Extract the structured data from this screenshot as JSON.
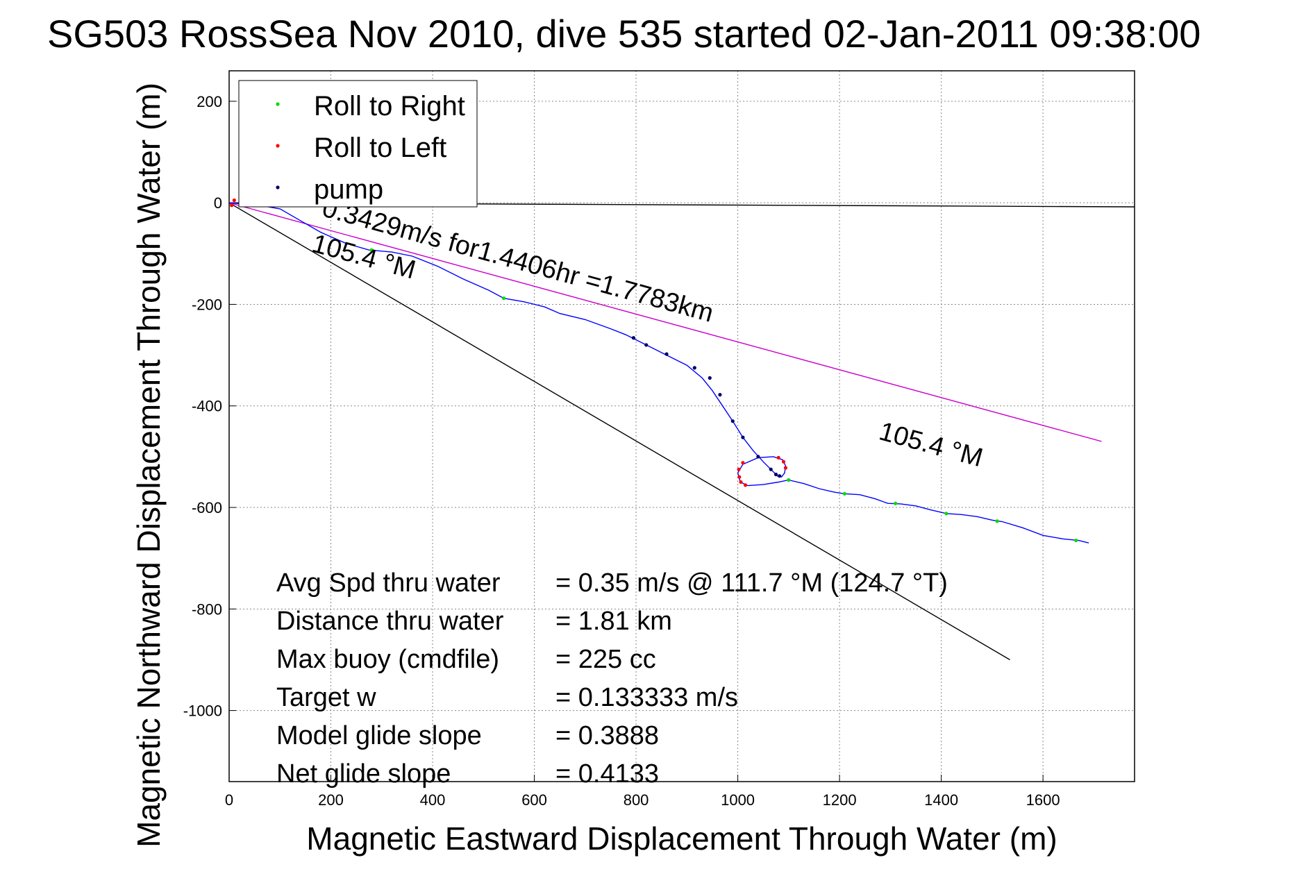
{
  "chart_data": {
    "type": "line",
    "title": "SG503 RossSea Nov 2010, dive 535 started 02-Jan-2011 09:38:00",
    "xlabel": "Magnetic Eastward Displacement Through Water (m)",
    "ylabel": "Magnetic Northward Displacement Through Water (m)",
    "xlim": [
      0,
      1780
    ],
    "ylim": [
      -1140,
      260
    ],
    "x_ticks": [
      0,
      200,
      400,
      600,
      800,
      1000,
      1200,
      1400,
      1600
    ],
    "y_ticks": [
      200,
      0,
      -200,
      -400,
      -600,
      -800,
      -1000
    ],
    "grid": true,
    "legend_position": "top-left",
    "legend": [
      {
        "label": "Roll to Right",
        "color": "#00dd00"
      },
      {
        "label": "Roll to Left",
        "color": "#ff0000"
      },
      {
        "label": "pump",
        "color": "#000066"
      }
    ],
    "lines": {
      "track": {
        "color": "#0000ff",
        "points": [
          [
            0,
            0
          ],
          [
            60,
            -5
          ],
          [
            100,
            -12
          ],
          [
            140,
            -35
          ],
          [
            180,
            -58
          ],
          [
            230,
            -80
          ],
          [
            275,
            -93
          ],
          [
            320,
            -97
          ],
          [
            360,
            -105
          ],
          [
            410,
            -125
          ],
          [
            460,
            -150
          ],
          [
            510,
            -172
          ],
          [
            540,
            -188
          ],
          [
            580,
            -195
          ],
          [
            620,
            -205
          ],
          [
            650,
            -218
          ],
          [
            700,
            -230
          ],
          [
            750,
            -248
          ],
          [
            780,
            -260
          ],
          [
            810,
            -275
          ],
          [
            840,
            -290
          ],
          [
            870,
            -305
          ],
          [
            900,
            -320
          ],
          [
            930,
            -345
          ],
          [
            950,
            -370
          ],
          [
            970,
            -400
          ],
          [
            990,
            -430
          ],
          [
            1010,
            -462
          ],
          [
            1030,
            -488
          ],
          [
            1050,
            -510
          ],
          [
            1068,
            -528
          ],
          [
            1078,
            -538
          ],
          [
            1086,
            -540
          ],
          [
            1092,
            -532
          ],
          [
            1094,
            -518
          ],
          [
            1088,
            -506
          ],
          [
            1070,
            -500
          ],
          [
            1040,
            -502
          ],
          [
            1010,
            -515
          ],
          [
            1000,
            -532
          ],
          [
            1005,
            -550
          ],
          [
            1020,
            -557
          ],
          [
            1050,
            -555
          ],
          [
            1080,
            -550
          ],
          [
            1100,
            -546
          ],
          [
            1130,
            -553
          ],
          [
            1160,
            -563
          ],
          [
            1190,
            -570
          ],
          [
            1210,
            -573
          ],
          [
            1240,
            -575
          ],
          [
            1270,
            -583
          ],
          [
            1295,
            -592
          ],
          [
            1320,
            -593
          ],
          [
            1350,
            -597
          ],
          [
            1380,
            -605
          ],
          [
            1410,
            -612
          ],
          [
            1440,
            -614
          ],
          [
            1470,
            -618
          ],
          [
            1500,
            -625
          ],
          [
            1520,
            -628
          ],
          [
            1560,
            -640
          ],
          [
            1600,
            -655
          ],
          [
            1640,
            -662
          ],
          [
            1670,
            -665
          ],
          [
            1690,
            -670
          ]
        ]
      },
      "magenta_line": {
        "color": "#cc00cc",
        "points": [
          [
            0,
            0
          ],
          [
            1715,
            -470
          ]
        ]
      },
      "black_heading_line": {
        "color": "#000000",
        "points": [
          [
            0,
            0
          ],
          [
            1535,
            -900
          ]
        ]
      },
      "zero_line": {
        "color": "#000000",
        "points": [
          [
            0,
            0
          ],
          [
            1780,
            -8
          ]
        ]
      }
    },
    "markers": {
      "roll_right": [
        [
          280,
          -93
        ],
        [
          540,
          -188
        ],
        [
          1100,
          -546
        ],
        [
          1210,
          -573
        ],
        [
          1310,
          -592
        ],
        [
          1410,
          -612
        ],
        [
          1510,
          -627
        ],
        [
          1665,
          -665
        ]
      ],
      "roll_left": [
        [
          1002,
          -525
        ],
        [
          1003,
          -540
        ],
        [
          1006,
          -550
        ],
        [
          1015,
          -556
        ],
        [
          1080,
          -502
        ],
        [
          1090,
          -510
        ],
        [
          1094,
          -522
        ],
        [
          1010,
          -512
        ],
        [
          5,
          -5
        ],
        [
          10,
          5
        ]
      ],
      "pump": [
        [
          795,
          -266
        ],
        [
          820,
          -280
        ],
        [
          860,
          -298
        ],
        [
          915,
          -325
        ],
        [
          945,
          -345
        ],
        [
          965,
          -378
        ],
        [
          990,
          -430
        ],
        [
          1010,
          -462
        ],
        [
          1040,
          -500
        ],
        [
          1065,
          -525
        ],
        [
          1075,
          -535
        ],
        [
          1082,
          -538
        ]
      ]
    },
    "annotations": [
      {
        "text": "0.3429m/s for1.4406hr =1.7783km",
        "x": 180,
        "y": -25,
        "angle": 15.3
      },
      {
        "text": "105.4 °M",
        "x": 160,
        "y": -95,
        "angle": 15.3
      },
      {
        "text": "105.4 °M",
        "x": 1275,
        "y": -465,
        "angle": 15.3
      }
    ],
    "stats": [
      {
        "label": "Avg Spd thru water",
        "value": "=  0.35 m/s @ 111.7 °M (124.7 °T)"
      },
      {
        "label": "Distance thru water",
        "value": "=  1.81 km"
      },
      {
        "label": "Max buoy (cmdfile)",
        "value": "= 225 cc"
      },
      {
        "label": "Target w",
        "value": "= 0.133333 m/s"
      },
      {
        "label": "Model glide slope",
        "value": "= 0.3888"
      },
      {
        "label": "Net glide slope",
        "value": "= 0.4133"
      }
    ]
  }
}
